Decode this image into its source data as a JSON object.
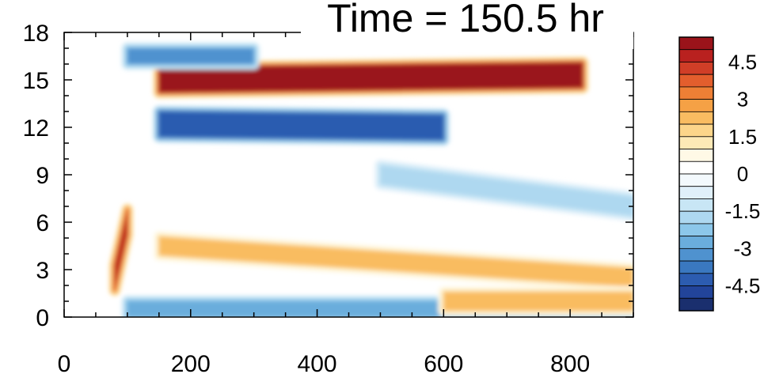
{
  "chart_data": {
    "type": "heatmap",
    "title": "Time = 150.5 hr",
    "xlabel": "",
    "ylabel": "",
    "xlim": [
      0,
      900
    ],
    "ylim": [
      0,
      18
    ],
    "x_ticks": [
      "0",
      "200",
      "400",
      "600",
      "800"
    ],
    "x_tick_values": [
      0,
      200,
      400,
      600,
      800
    ],
    "y_ticks": [
      "0",
      "3",
      "6",
      "9",
      "12",
      "15",
      "18"
    ],
    "y_tick_values": [
      0,
      3,
      6,
      9,
      12,
      15,
      18
    ],
    "colorbar": {
      "levels": [
        -5.5,
        -5,
        -4.5,
        -4,
        -3.5,
        -3,
        -2.5,
        -2,
        -1.5,
        -1,
        -0.5,
        0,
        0.5,
        1,
        1.5,
        2,
        2.5,
        3,
        3.5,
        4,
        4.5,
        5,
        5.5
      ],
      "colors": [
        "#1a2f6e",
        "#22449a",
        "#2c5cb0",
        "#3a78c0",
        "#4f92cf",
        "#6aaddc",
        "#8cc7ea",
        "#aed8f0",
        "#c8e6f5",
        "#e0f0fa",
        "#f3f9fd",
        "#ffffff",
        "#fff9e6",
        "#fde9b6",
        "#fcd58a",
        "#f9bc61",
        "#f5a145",
        "#ee7f35",
        "#e35e2d",
        "#d03e27",
        "#b9211f",
        "#9a131a"
      ],
      "tick_labels": [
        "4.5",
        "3",
        "1.5",
        "0",
        "-1.5",
        "-3",
        "-4.5"
      ],
      "tick_values": [
        4.5,
        3,
        1.5,
        0,
        -1.5,
        -3,
        -4.5
      ]
    },
    "features": [
      {
        "x": [
          150,
          820
        ],
        "y": [
          15.0,
          15.3
        ],
        "value": 5.0
      },
      {
        "x": [
          150,
          600
        ],
        "y": [
          12.2,
          12.0
        ],
        "value": -4.5
      },
      {
        "x": [
          100,
          300
        ],
        "y": [
          16.5,
          16.5
        ],
        "value": -3.5
      },
      {
        "x": [
          150,
          900
        ],
        "y": [
          4.5,
          2.5
        ],
        "value": 2.0
      },
      {
        "x": [
          100,
          900
        ],
        "y": [
          0.5,
          0.5
        ],
        "value": -3.0
      },
      {
        "x": [
          600,
          900
        ],
        "y": [
          1.0,
          1.0
        ],
        "value": 2.0
      },
      {
        "x": [
          500,
          900
        ],
        "y": [
          9.0,
          7.0
        ],
        "value": -2.0
      },
      {
        "x": [
          80,
          100
        ],
        "y": [
          2.5,
          6.0
        ],
        "value": 4.5
      }
    ]
  }
}
